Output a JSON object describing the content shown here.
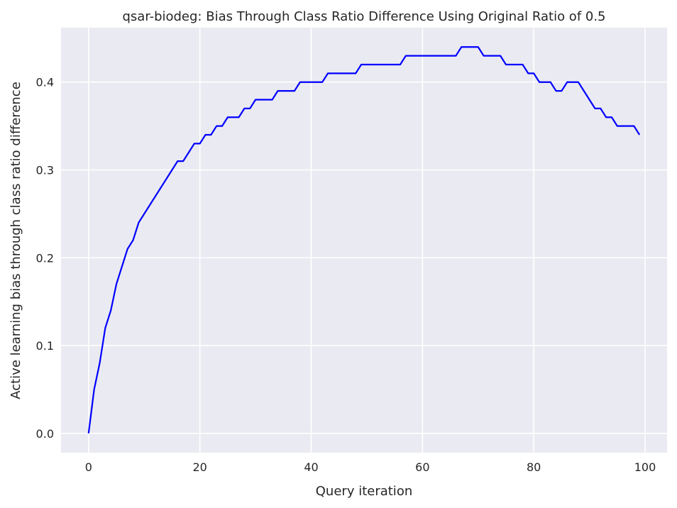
{
  "chart_data": {
    "type": "line",
    "title": "qsar-biodeg: Bias Through Class Ratio Difference Using Original Ratio of 0.5",
    "xlabel": "Query iteration",
    "ylabel": "Active learning bias through class ratio difference",
    "xlim": [
      -4.95,
      103.95
    ],
    "ylim": [
      -0.022,
      0.462
    ],
    "xticks": [
      0,
      20,
      40,
      60,
      80,
      100
    ],
    "xtick_labels": [
      "0",
      "20",
      "40",
      "60",
      "80",
      "100"
    ],
    "yticks": [
      0.0,
      0.1,
      0.2,
      0.3,
      0.4
    ],
    "ytick_labels": [
      "0.0",
      "0.1",
      "0.2",
      "0.3",
      "0.4"
    ],
    "grid": true,
    "background": "#eaeaf2",
    "grid_color": "#ffffff",
    "series": [
      {
        "color": "#0000ff",
        "x": [
          0,
          1,
          2,
          3,
          4,
          5,
          6,
          7,
          8,
          9,
          10,
          11,
          12,
          13,
          14,
          15,
          16,
          17,
          18,
          19,
          20,
          21,
          22,
          23,
          24,
          25,
          26,
          27,
          28,
          29,
          30,
          31,
          32,
          33,
          34,
          35,
          36,
          37,
          38,
          39,
          40,
          41,
          42,
          43,
          44,
          45,
          46,
          47,
          48,
          49,
          50,
          51,
          52,
          53,
          54,
          55,
          56,
          57,
          58,
          59,
          60,
          61,
          62,
          63,
          64,
          65,
          66,
          67,
          68,
          69,
          70,
          71,
          72,
          73,
          74,
          75,
          76,
          77,
          78,
          79,
          80,
          81,
          82,
          83,
          84,
          85,
          86,
          87,
          88,
          89,
          90,
          91,
          92,
          93,
          94,
          95,
          96,
          97,
          98,
          99
        ],
        "y": [
          0.0,
          0.05,
          0.08,
          0.12,
          0.14,
          0.17,
          0.19,
          0.21,
          0.22,
          0.24,
          0.25,
          0.26,
          0.27,
          0.28,
          0.29,
          0.3,
          0.31,
          0.31,
          0.32,
          0.33,
          0.33,
          0.34,
          0.34,
          0.35,
          0.35,
          0.36,
          0.36,
          0.36,
          0.37,
          0.37,
          0.38,
          0.38,
          0.38,
          0.38,
          0.39,
          0.39,
          0.39,
          0.39,
          0.4,
          0.4,
          0.4,
          0.4,
          0.4,
          0.41,
          0.41,
          0.41,
          0.41,
          0.41,
          0.41,
          0.42,
          0.42,
          0.42,
          0.42,
          0.42,
          0.42,
          0.42,
          0.42,
          0.43,
          0.43,
          0.43,
          0.43,
          0.43,
          0.43,
          0.43,
          0.43,
          0.43,
          0.43,
          0.44,
          0.44,
          0.44,
          0.44,
          0.43,
          0.43,
          0.43,
          0.43,
          0.42,
          0.42,
          0.42,
          0.42,
          0.41,
          0.41,
          0.4,
          0.4,
          0.4,
          0.39,
          0.39,
          0.4,
          0.4,
          0.4,
          0.39,
          0.38,
          0.37,
          0.37,
          0.36,
          0.36,
          0.35,
          0.35,
          0.35,
          0.35,
          0.34
        ]
      }
    ]
  }
}
